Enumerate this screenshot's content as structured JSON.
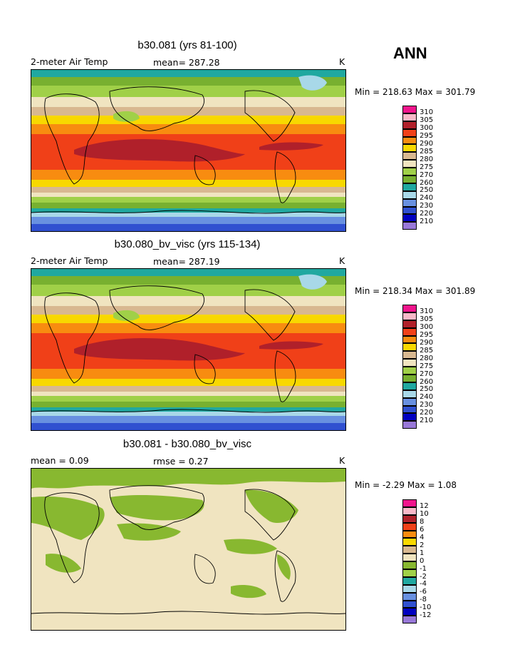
{
  "season": "ANN",
  "panels": [
    {
      "title": "b30.081 (yrs 81-100)",
      "variable": "2-meter Air Temp",
      "stat": "mean= 287.28",
      "units": "K",
      "minmax": "Min = 218.63 Max = 301.79"
    },
    {
      "title": "b30.080_bv_visc (yrs 115-134)",
      "variable": "2-meter Air Temp",
      "stat": "mean= 287.19",
      "units": "K",
      "minmax": "Min = 218.34 Max = 301.89"
    },
    {
      "title": "b30.081 - b30.080_bv_visc",
      "variable": "mean =   0.09",
      "stat": "rmse =   0.27",
      "units": "K",
      "minmax": "Min =  -2.29 Max =   1.08"
    }
  ],
  "temp_colorbar": {
    "labels": [
      "310",
      "305",
      "300",
      "295",
      "290",
      "285",
      "280",
      "275",
      "270",
      "260",
      "250",
      "240",
      "230",
      "220",
      "210"
    ],
    "colors": [
      "#f0148c",
      "#f8b8c8",
      "#b0202a",
      "#f04018",
      "#f88c10",
      "#f8d800",
      "#d8b890",
      "#f0e4c0",
      "#a0d048",
      "#78b030",
      "#20a8a0",
      "#a8d8e8",
      "#6890e0",
      "#3050d0",
      "#0000c0",
      "#9878d8"
    ]
  },
  "diff_colorbar": {
    "labels": [
      "12",
      "10",
      "8",
      "6",
      "4",
      "2",
      "1",
      "0",
      "-1",
      "-2",
      "-4",
      "-6",
      "-8",
      "-10",
      "-12"
    ],
    "colors": [
      "#f0148c",
      "#f8b8c8",
      "#b0202a",
      "#f04018",
      "#f88c10",
      "#f8d800",
      "#d8b890",
      "#f0e4c0",
      "#88b830",
      "#a0d048",
      "#20a8a0",
      "#a8d8e8",
      "#6890e0",
      "#3050d0",
      "#0000c0",
      "#9878d8"
    ]
  },
  "map_colors": {
    "polar_deep": "#6890e0",
    "polar_ice": "#3050d0",
    "sea_ice": "#a8d8e8",
    "teal": "#20a8a0",
    "green": "#78b030",
    "light_green": "#a0d048",
    "cream": "#f0e4c0",
    "tan": "#d8b890",
    "yellow": "#f8d800",
    "orange": "#f88c10",
    "redorange": "#f04018",
    "darkred": "#b0202a",
    "diff_bg": "#f0e4c0",
    "diff_green": "#88b830"
  }
}
